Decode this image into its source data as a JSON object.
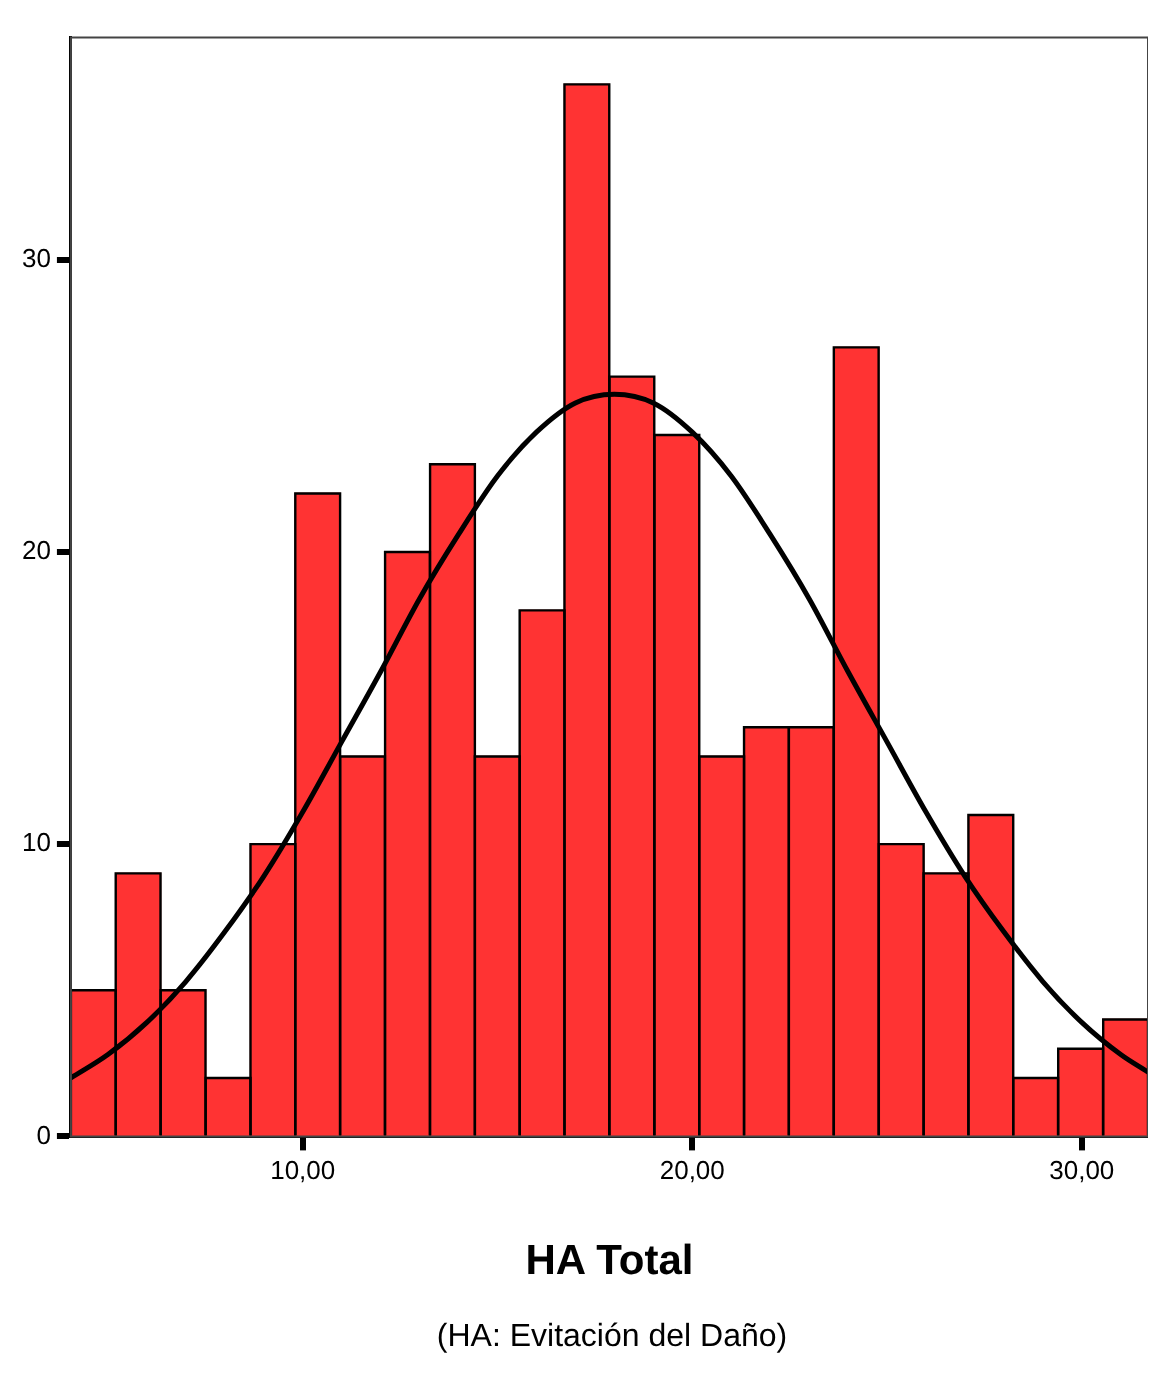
{
  "chart_data": {
    "type": "histogram",
    "xlabel": "HA Total",
    "annotations": [
      "(HA: Evitación del Daño)"
    ],
    "bins": [
      4.05,
      5.2,
      6.35,
      7.51,
      8.66,
      9.81,
      10.96,
      12.11,
      13.27,
      14.42,
      15.57,
      16.72,
      17.87,
      19.03,
      20.18,
      21.33,
      22.48,
      23.63,
      24.79,
      25.94,
      27.09,
      28.24,
      29.39,
      30.55,
      31.7
    ],
    "values": [
      5,
      9,
      5,
      2,
      10,
      22,
      13,
      20,
      23,
      13,
      18,
      36,
      26,
      24,
      13,
      14,
      14,
      27,
      10,
      9,
      11,
      2,
      3,
      4
    ],
    "color": "#ff3333",
    "series": [
      {
        "type": "line",
        "color": "#000000",
        "x": [
          4.05,
          5,
          6,
          7,
          8,
          9,
          10,
          11,
          12,
          13,
          14,
          15,
          16,
          17,
          18,
          19,
          20,
          21,
          22,
          23,
          24,
          25,
          26,
          27,
          28,
          29,
          30,
          31,
          31.7
        ],
        "values": [
          2.0,
          2.8,
          3.9,
          5.3,
          7.0,
          8.9,
          11.1,
          13.5,
          15.9,
          18.4,
          20.6,
          22.6,
          24.1,
          25.1,
          25.4,
          25.1,
          24.1,
          22.6,
          20.6,
          18.4,
          15.9,
          13.5,
          11.1,
          8.9,
          7.0,
          5.3,
          3.9,
          2.8,
          2.2
        ]
      }
    ],
    "xlim": [
      4.05,
      31.7
    ],
    "ylim": [
      0,
      37.6
    ],
    "xticks": [
      {
        "value": 10,
        "label": "10,00"
      },
      {
        "value": 20,
        "label": "20,00"
      },
      {
        "value": 30,
        "label": "30,00"
      }
    ],
    "yticks": [
      0,
      10,
      20,
      30
    ],
    "grid": false,
    "legend": false,
    "marker": "none",
    "line_style": "solid"
  }
}
